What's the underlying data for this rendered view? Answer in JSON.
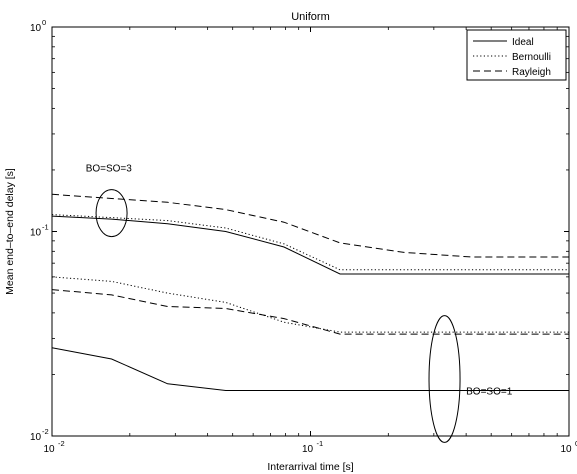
{
  "chart_data": {
    "type": "line",
    "title": "Uniform",
    "xlabel": "Interarrival time [s]",
    "ylabel": "Mean end–to–end delay [s]",
    "xscale": "log",
    "yscale": "log",
    "xlim": [
      0.01,
      1
    ],
    "ylim": [
      0.01,
      1
    ],
    "grid": false,
    "legend_position": "top-right",
    "x_ticks": [
      {
        "value": 0.01,
        "base": "10",
        "exp": "-2"
      },
      {
        "value": 0.1,
        "base": "10",
        "exp": "-1"
      },
      {
        "value": 1,
        "base": "10",
        "exp": "0"
      }
    ],
    "y_ticks": [
      {
        "value": 0.01,
        "base": "10",
        "exp": "-2"
      },
      {
        "value": 0.1,
        "base": "10",
        "exp": "-1"
      },
      {
        "value": 1,
        "base": "10",
        "exp": "0"
      }
    ],
    "series": [
      {
        "name": "Ideal",
        "style": "solid",
        "group": "BO=SO=3",
        "x": [
          0.01,
          0.017,
          0.028,
          0.047,
          0.079,
          0.13,
          1
        ],
        "y": [
          0.119,
          0.115,
          0.109,
          0.1,
          0.084,
          0.062,
          0.062
        ]
      },
      {
        "name": "Bernoulli",
        "style": "dotted",
        "group": "BO=SO=3",
        "x": [
          0.01,
          0.017,
          0.028,
          0.047,
          0.079,
          0.13,
          1
        ],
        "y": [
          0.121,
          0.117,
          0.113,
          0.104,
          0.087,
          0.065,
          0.065
        ]
      },
      {
        "name": "Rayleigh",
        "style": "dashed",
        "group": "BO=SO=3",
        "x": [
          0.01,
          0.017,
          0.028,
          0.047,
          0.079,
          0.13,
          0.23,
          0.42,
          1
        ],
        "y": [
          0.152,
          0.145,
          0.139,
          0.128,
          0.111,
          0.088,
          0.079,
          0.075,
          0.075
        ]
      },
      {
        "name": "Ideal",
        "style": "solid",
        "group": "BO=SO=1",
        "x": [
          0.01,
          0.017,
          0.028,
          0.047,
          1
        ],
        "y": [
          0.027,
          0.0238,
          0.018,
          0.0167,
          0.0167
        ]
      },
      {
        "name": "Bernoulli",
        "style": "dotted",
        "group": "BO=SO=1",
        "x": [
          0.01,
          0.017,
          0.028,
          0.047,
          0.079,
          0.13,
          1
        ],
        "y": [
          0.06,
          0.057,
          0.05,
          0.045,
          0.036,
          0.0322,
          0.0322
        ]
      },
      {
        "name": "Rayleigh",
        "style": "dashed",
        "group": "BO=SO=1",
        "x": [
          0.01,
          0.017,
          0.028,
          0.047,
          0.079,
          0.13,
          1
        ],
        "y": [
          0.052,
          0.049,
          0.043,
          0.042,
          0.0375,
          0.0315,
          0.0315
        ]
      }
    ],
    "legend": [
      {
        "name": "Ideal",
        "style": "solid"
      },
      {
        "name": "Bernoulli",
        "style": "dotted"
      },
      {
        "name": "Rayleigh",
        "style": "dashed"
      }
    ],
    "annotations": [
      {
        "text": "BO=SO=3",
        "x": 0.017,
        "y": 0.123,
        "ellipse_rx_decades": 0.06,
        "ellipse_ry_decades": 0.115,
        "label_x": 0.0135,
        "label_y": 0.205
      },
      {
        "text": "BO=SO=1",
        "x": 0.33,
        "y": 0.019,
        "ellipse_rx_decades": 0.06,
        "ellipse_ry_decades": 0.31,
        "label_x": 0.4,
        "label_y": 0.0167
      }
    ],
    "colors": {
      "line": "#000000",
      "background": "#ffffff"
    }
  }
}
